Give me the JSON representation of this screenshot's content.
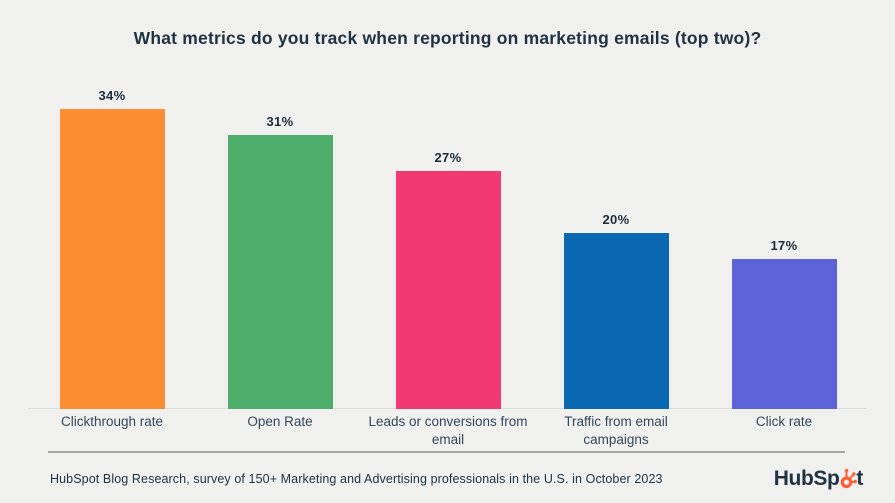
{
  "chart_data": {
    "type": "bar",
    "title": "What metrics do you track when reporting on marketing emails (top two)?",
    "categories": [
      "Clickthrough rate",
      "Open Rate",
      "Leads or conversions from email",
      "Traffic from email campaigns",
      "Click rate"
    ],
    "values": [
      34,
      31,
      27,
      20,
      17
    ],
    "value_labels": [
      "34%",
      "31%",
      "27%",
      "20%",
      "17%"
    ],
    "bar_colors": [
      "#fb8d33",
      "#4fad6b",
      "#f23a72",
      "#0a68b2",
      "#5c63d9"
    ],
    "xlabel": "",
    "ylabel": "",
    "ylim": [
      0,
      34
    ],
    "grid": false,
    "legend": false,
    "bar_label_position": "above"
  },
  "footer": {
    "source": "HubSpot Blog Research, survey of 150+ Marketing and Advertising professionals in the U.S. in October 2023",
    "logo_text_left": "HubSp",
    "logo_text_right": "t"
  },
  "colors": {
    "background": "#f0f1ef",
    "title_text": "#213343",
    "value_text": "#1b2b3a",
    "category_text": "#33475b",
    "axis_line": "#dcdedd",
    "divider": "#a6a6a6",
    "logo_text": "#213343",
    "logo_accent": "#ff5c35"
  }
}
